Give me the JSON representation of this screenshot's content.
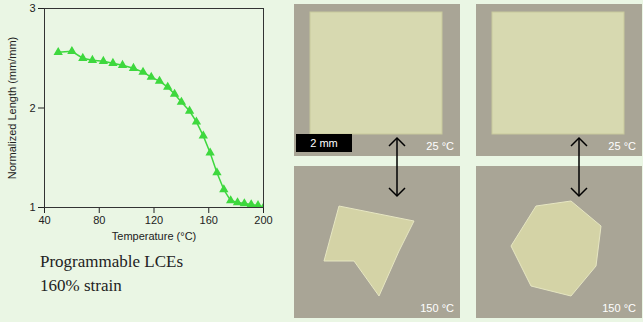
{
  "chart_data": {
    "type": "line",
    "xlabel": "Temperature (°C)",
    "ylabel": "Normalized Length (mm/mm)",
    "x": [
      50,
      60,
      68,
      75,
      83,
      90,
      97,
      105,
      112,
      118,
      124,
      130,
      135,
      140,
      146,
      151,
      156,
      161,
      166,
      171,
      176,
      181,
      186,
      191,
      196,
      200
    ],
    "values": [
      2.56,
      2.57,
      2.5,
      2.48,
      2.47,
      2.45,
      2.43,
      2.4,
      2.36,
      2.31,
      2.27,
      2.21,
      2.14,
      2.06,
      1.97,
      1.86,
      1.72,
      1.55,
      1.35,
      1.18,
      1.07,
      1.05,
      1.04,
      1.03,
      1.02,
      1.0
    ],
    "color": "#3ed83e",
    "marker": "triangle",
    "line_style": "solid",
    "xlim": [
      40,
      200
    ],
    "ylim": [
      1,
      3
    ],
    "xticks": [
      40,
      80,
      120,
      160,
      200
    ],
    "yticks": [
      1,
      2,
      3
    ],
    "grid": false
  },
  "caption": [
    "Programmable LCEs",
    "160% strain"
  ],
  "photos": {
    "scale_bar": "2 mm",
    "columns": [
      {
        "top": "25 °C",
        "bottom": "150 °C"
      },
      {
        "top": "25 °C",
        "bottom": "150 °C"
      }
    ]
  }
}
